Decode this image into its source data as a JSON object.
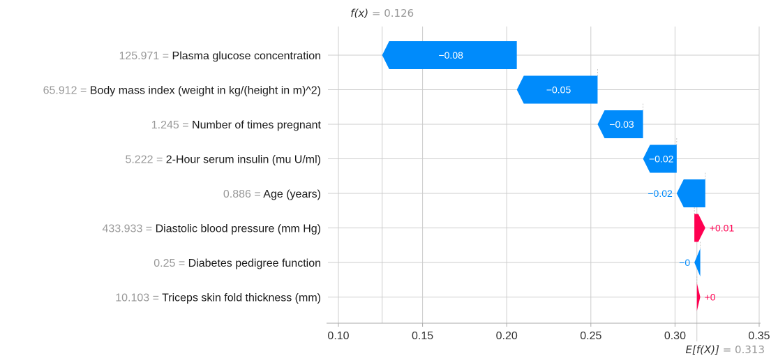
{
  "chart_data": {
    "type": "bar",
    "chart_kind": "waterfall",
    "fx_label": "f(x)",
    "fx_value": 0.126,
    "fx_text": "= 0.126",
    "ex_label": "E[f(X)]",
    "ex_value": 0.313,
    "ex_text": "= 0.313",
    "x_ticks": [
      "0.10",
      "0.15",
      "0.20",
      "0.25",
      "0.30",
      "0.35"
    ],
    "xlim": [
      0.1,
      0.35
    ],
    "grid": true,
    "colors": {
      "negative": "#008bfb",
      "positive": "#ff0051",
      "feature_value": "#999999",
      "feature_name": "#1a1a1a",
      "grid": "#cccccc",
      "axis": "#aaaaaa"
    },
    "features": [
      {
        "value": "125.971",
        "name": "Plasma glucose concentration",
        "contribution": -0.08,
        "label": "−0.08",
        "start": 0.206,
        "end": 0.126
      },
      {
        "value": "65.912",
        "name": "Body mass index (weight in kg/(height in m)^2)",
        "contribution": -0.05,
        "label": "−0.05",
        "start": 0.254,
        "end": 0.206
      },
      {
        "value": "1.245",
        "name": "Number of times pregnant",
        "contribution": -0.03,
        "label": "−0.03",
        "start": 0.281,
        "end": 0.254
      },
      {
        "value": "5.222",
        "name": "2-Hour serum insulin (mu U/ml)",
        "contribution": -0.02,
        "label": "−0.02",
        "start": 0.301,
        "end": 0.281
      },
      {
        "value": "0.886",
        "name": "Age (years)",
        "contribution": -0.02,
        "label": "−0.02",
        "start": 0.318,
        "end": 0.301
      },
      {
        "value": "433.933",
        "name": "Diastolic blood pressure (mm Hg)",
        "contribution": 0.01,
        "label": "+0.01",
        "start": 0.3115,
        "end": 0.318
      },
      {
        "value": "0.25",
        "name": "Diabetes pedigree function",
        "contribution": -0.0035,
        "label": "−0",
        "start": 0.315,
        "end": 0.3115
      },
      {
        "value": "10.103",
        "name": "Triceps skin fold thickness (mm)",
        "contribution": 0.002,
        "label": "+0",
        "start": 0.313,
        "end": 0.315
      }
    ]
  }
}
